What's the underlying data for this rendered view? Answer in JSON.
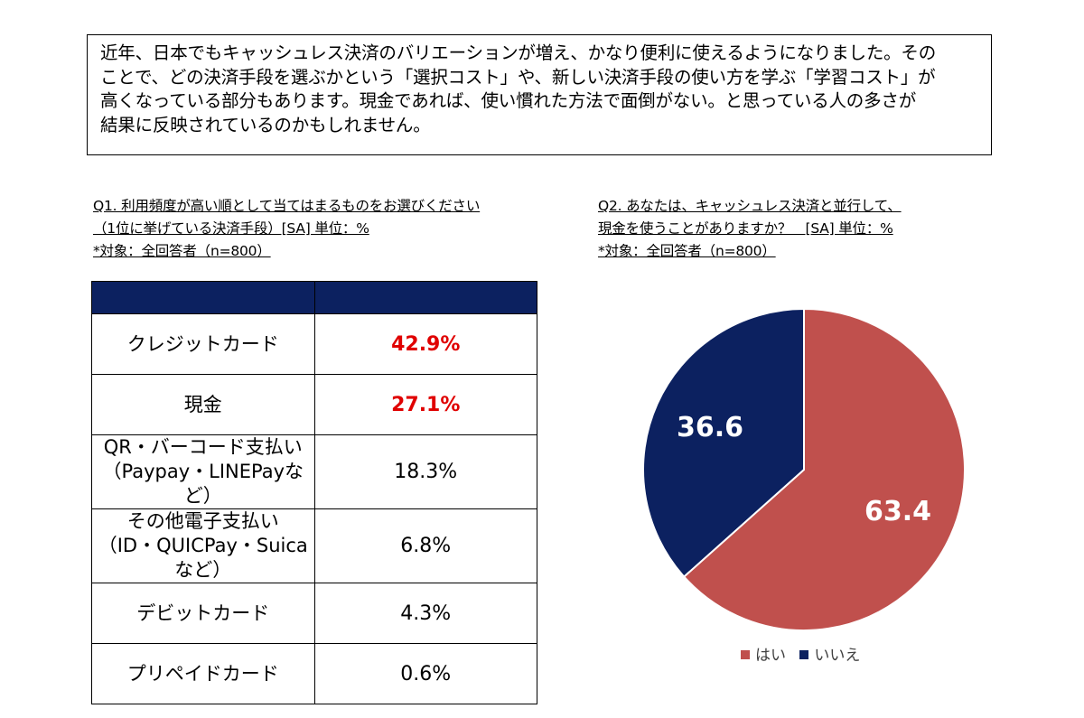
{
  "summary": {
    "lines": [
      "近年、日本でもキャッシュレス決済のバリエーションが増え、かなり便利に使えるようになりました。その",
      "ことで、どの決済手段を選ぶかという「選択コスト」や、新しい決済手段の使い方を学ぶ「学習コスト」が",
      "高くなっている部分もあります。現金であれば、使い慣れた方法で面倒がない。と思っている人の多さが",
      "結果に反映されているのかもしれません。"
    ]
  },
  "q1": {
    "title_lines": [
      "Q1. 利用頻度が高い順として当てはまるものをお選びください",
      "（1位に挙げている決済手段）[SA] 単位：%",
      "*対象：全回答者（n=800）"
    ],
    "header": {
      "item": "",
      "value": ""
    },
    "rows": [
      {
        "label_lines": [
          "クレジットカード"
        ],
        "value": "42.9%",
        "highlight": true
      },
      {
        "label_lines": [
          "現金"
        ],
        "value": "27.1%",
        "highlight": true
      },
      {
        "label_lines": [
          "QR・バーコード支払い",
          "（Paypay・LINEPayなど）"
        ],
        "value": "18.3%",
        "highlight": false
      },
      {
        "label_lines": [
          "その他電子支払い",
          "（ID・QUICPay・Suicaなど）"
        ],
        "value": "6.8%",
        "highlight": false
      },
      {
        "label_lines": [
          "デビットカード"
        ],
        "value": "4.3%",
        "highlight": false
      },
      {
        "label_lines": [
          "プリペイドカード"
        ],
        "value": "0.6%",
        "highlight": false
      }
    ],
    "colors": {
      "header": "#0c2160",
      "highlight": "#e00000"
    }
  },
  "q2": {
    "title_lines": [
      "Q2. あなたは、キャッシュレス決済と並行して、",
      "現金を使うことがありますか？　[SA] 単位：%",
      "*対象：全回答者（n=800）"
    ]
  },
  "chart_data": [
    {
      "type": "table",
      "title": "Q1. 利用頻度が高い順として当てはまるものをお選びください",
      "categories": [
        "クレジットカード",
        "現金",
        "QR・バーコード支払い（Paypay・LINEPayなど）",
        "その他電子支払い（ID・QUICPay・Suicaなど）",
        "デビットカード",
        "プリペイドカード"
      ],
      "values": [
        42.9,
        27.1,
        18.3,
        6.8,
        4.3,
        0.6
      ]
    },
    {
      "type": "pie",
      "title": "Q2. あなたは、キャッシュレス決済と並行して、現金を使うことがありますか？",
      "categories": [
        "はい",
        "いいえ"
      ],
      "values": [
        63.4,
        36.6
      ],
      "data_labels": [
        "63.4",
        "36.6"
      ],
      "colors": [
        "#c0504d",
        "#0c2160"
      ],
      "start_angle": "12 o'clock, clockwise",
      "legend": "bottom"
    }
  ]
}
